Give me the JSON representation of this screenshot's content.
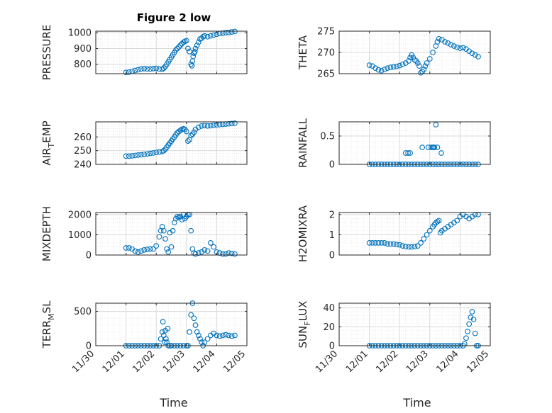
{
  "figure": {
    "title": "Figure 2 low",
    "marker_color": "#0072BD"
  },
  "chart_data": [
    {
      "type": "scatter",
      "ylabel": "PRESSURE",
      "ylim": [
        740,
        1010
      ],
      "yticks": [
        800,
        900,
        1000
      ],
      "xlim": [
        0,
        5
      ],
      "xticks": [
        0,
        1,
        2,
        3,
        4,
        5
      ],
      "xticklabels": [
        "11/30",
        "12/01",
        "12/02",
        "12/03",
        "12/04",
        "12/05"
      ],
      "grid": true,
      "minor_grid": true,
      "x": [
        1.0,
        1.1,
        1.2,
        1.3,
        1.4,
        1.5,
        1.6,
        1.7,
        1.8,
        1.9,
        2.0,
        2.1,
        2.2,
        2.25,
        2.3,
        2.35,
        2.4,
        2.45,
        2.5,
        2.55,
        2.6,
        2.65,
        2.7,
        2.75,
        2.8,
        2.85,
        2.9,
        2.95,
        3.0,
        3.05,
        3.1,
        3.15,
        3.18,
        3.2,
        3.22,
        3.25,
        3.28,
        3.3,
        3.35,
        3.4,
        3.45,
        3.5,
        3.55,
        3.6,
        3.7,
        3.8,
        3.9,
        4.0,
        4.1,
        4.2,
        4.3,
        4.4,
        4.5,
        4.6
      ],
      "y": [
        748,
        750,
        755,
        760,
        765,
        770,
        772,
        770,
        770,
        772,
        774,
        770,
        768,
        775,
        785,
        800,
        815,
        830,
        845,
        860,
        875,
        890,
        900,
        910,
        920,
        930,
        940,
        945,
        950,
        900,
        880,
        800,
        790,
        820,
        850,
        870,
        880,
        900,
        920,
        940,
        960,
        965,
        975,
        980,
        975,
        980,
        985,
        990,
        995,
        998,
        1000,
        1002,
        1005,
        1008
      ]
    },
    {
      "type": "scatter",
      "ylabel": "THETA",
      "ylim": [
        265,
        275
      ],
      "yticks": [
        265,
        270,
        275
      ],
      "xlim": [
        0,
        5
      ],
      "xticks": [
        0,
        1,
        2,
        3,
        4,
        5
      ],
      "xticklabels": [
        "11/30",
        "12/01",
        "12/02",
        "12/03",
        "12/04",
        "12/05"
      ],
      "grid": true,
      "minor_grid": true,
      "x": [
        1.0,
        1.1,
        1.2,
        1.3,
        1.4,
        1.5,
        1.6,
        1.7,
        1.8,
        1.9,
        2.0,
        2.1,
        2.2,
        2.3,
        2.35,
        2.4,
        2.45,
        2.5,
        2.55,
        2.6,
        2.65,
        2.7,
        2.75,
        2.8,
        2.85,
        2.9,
        3.0,
        3.1,
        3.2,
        3.25,
        3.3,
        3.4,
        3.5,
        3.6,
        3.7,
        3.8,
        3.9,
        4.0,
        4.1,
        4.2,
        4.3,
        4.4,
        4.5,
        4.6
      ],
      "y": [
        267.0,
        266.8,
        266.3,
        265.9,
        265.7,
        266.0,
        266.3,
        266.5,
        266.6,
        266.7,
        266.9,
        267.2,
        267.5,
        268.0,
        268.8,
        269.4,
        268.8,
        268.2,
        268.0,
        267.5,
        266.8,
        265.2,
        265.5,
        266.0,
        266.8,
        267.5,
        268.5,
        270.0,
        271.5,
        272.5,
        273.2,
        273.0,
        272.5,
        272.2,
        271.8,
        271.5,
        271.2,
        271.0,
        271.1,
        270.8,
        270.3,
        269.8,
        269.4,
        269.0
      ]
    },
    {
      "type": "scatter",
      "ylabel": "AIR_TEMP",
      "ylim": [
        240,
        271
      ],
      "yticks": [
        240,
        250,
        260
      ],
      "xlim": [
        0,
        5
      ],
      "xticks": [
        0,
        1,
        2,
        3,
        4,
        5
      ],
      "xticklabels": [
        "11/30",
        "12/01",
        "12/02",
        "12/03",
        "12/04",
        "12/05"
      ],
      "grid": true,
      "minor_grid": true,
      "x": [
        1.0,
        1.1,
        1.2,
        1.3,
        1.4,
        1.5,
        1.6,
        1.7,
        1.8,
        1.9,
        2.0,
        2.1,
        2.2,
        2.25,
        2.3,
        2.35,
        2.4,
        2.45,
        2.5,
        2.55,
        2.6,
        2.65,
        2.7,
        2.75,
        2.8,
        2.85,
        2.9,
        2.95,
        3.0,
        3.05,
        3.1,
        3.15,
        3.2,
        3.25,
        3.3,
        3.4,
        3.5,
        3.6,
        3.7,
        3.8,
        3.9,
        4.0,
        4.1,
        4.2,
        4.3,
        4.4,
        4.5,
        4.6
      ],
      "y": [
        246.0,
        246.0,
        246.2,
        246.5,
        246.8,
        247.0,
        247.3,
        247.6,
        248.0,
        248.3,
        248.7,
        249.0,
        249.4,
        250.0,
        251.0,
        252.5,
        254.0,
        255.5,
        257.0,
        258.5,
        260.0,
        261.5,
        263.0,
        264.0,
        264.8,
        265.5,
        266.0,
        265.5,
        264.0,
        257.0,
        258.0,
        261.0,
        262.0,
        263.5,
        265.5,
        267.0,
        268.0,
        268.3,
        268.0,
        268.2,
        268.5,
        268.8,
        269.0,
        269.2,
        269.4,
        269.6,
        269.8,
        270.0
      ]
    },
    {
      "type": "scatter",
      "ylabel": "RAINFALL",
      "ylim": [
        0,
        0.75
      ],
      "yticks": [
        0,
        0.5
      ],
      "xlim": [
        0,
        5
      ],
      "xticks": [
        0,
        1,
        2,
        3,
        4,
        5
      ],
      "xticklabels": [
        "11/30",
        "12/01",
        "12/02",
        "12/03",
        "12/04",
        "12/05"
      ],
      "grid": true,
      "minor_grid": true,
      "x": [
        1.0,
        1.1,
        1.2,
        1.3,
        1.4,
        1.5,
        1.6,
        1.7,
        1.8,
        1.9,
        2.0,
        2.1,
        2.2,
        2.3,
        2.4,
        2.5,
        2.6,
        2.7,
        2.8,
        2.9,
        3.0,
        3.1,
        3.2,
        3.3,
        3.4,
        3.5,
        3.6,
        3.7,
        3.8,
        3.9,
        4.0,
        4.1,
        4.2,
        4.3,
        4.4,
        4.5,
        4.6,
        2.2,
        2.28,
        2.35,
        2.75,
        2.95,
        3.05,
        3.12,
        3.15,
        3.2,
        3.25,
        3.1,
        3.38
      ],
      "y": [
        0,
        0,
        0,
        0,
        0,
        0,
        0,
        0,
        0,
        0,
        0,
        0,
        0,
        0,
        0,
        0,
        0,
        0,
        0,
        0,
        0,
        0,
        0,
        0,
        0,
        0,
        0,
        0,
        0,
        0,
        0,
        0,
        0,
        0,
        0,
        0,
        0,
        0.2,
        0.2,
        0.2,
        0.3,
        0.3,
        0.3,
        0.3,
        0.3,
        0.7,
        0.3,
        0.3,
        0.2
      ]
    },
    {
      "type": "scatter",
      "ylabel": "MIXDEPTH",
      "ylim": [
        0,
        2100
      ],
      "yticks": [
        0,
        1000,
        2000
      ],
      "xlim": [
        0,
        5
      ],
      "xticks": [
        0,
        1,
        2,
        3,
        4,
        5
      ],
      "xticklabels": [
        "11/30",
        "12/01",
        "12/02",
        "12/03",
        "12/04",
        "12/05"
      ],
      "grid": true,
      "minor_grid": true,
      "x": [
        1.0,
        1.1,
        1.2,
        1.3,
        1.4,
        1.5,
        1.6,
        1.7,
        1.8,
        1.9,
        2.0,
        2.1,
        2.15,
        2.2,
        2.25,
        2.3,
        2.35,
        2.4,
        2.45,
        2.5,
        2.55,
        2.6,
        2.65,
        2.7,
        2.75,
        2.8,
        2.85,
        2.9,
        2.95,
        3.0,
        3.05,
        3.1,
        3.15,
        3.2,
        3.25,
        3.3,
        3.4,
        3.5,
        3.6,
        3.7,
        3.8,
        3.9,
        4.0,
        4.1,
        4.2,
        4.3,
        4.4,
        4.5,
        4.6
      ],
      "y": [
        350,
        350,
        300,
        200,
        150,
        200,
        250,
        280,
        300,
        300,
        450,
        900,
        1200,
        1400,
        1200,
        800,
        300,
        150,
        1100,
        400,
        1200,
        1600,
        1800,
        1900,
        1850,
        1900,
        1750,
        2000,
        1800,
        1900,
        2000,
        2000,
        1200,
        300,
        100,
        50,
        100,
        150,
        250,
        200,
        600,
        400,
        150,
        100,
        50,
        50,
        100,
        80,
        50
      ]
    },
    {
      "type": "scatter",
      "ylabel": "H2OMIXRA",
      "ylim": [
        0,
        2.1
      ],
      "yticks": [
        0,
        1,
        2
      ],
      "xlim": [
        0,
        5
      ],
      "xticks": [
        0,
        1,
        2,
        3,
        4,
        5
      ],
      "xticklabels": [
        "11/30",
        "12/01",
        "12/02",
        "12/03",
        "12/04",
        "12/05"
      ],
      "grid": true,
      "minor_grid": true,
      "x": [
        1.0,
        1.1,
        1.2,
        1.3,
        1.4,
        1.5,
        1.6,
        1.7,
        1.8,
        1.9,
        2.0,
        2.1,
        2.2,
        2.3,
        2.4,
        2.5,
        2.6,
        2.7,
        2.8,
        2.9,
        3.0,
        3.1,
        3.15,
        3.2,
        3.25,
        3.3,
        3.35,
        3.4,
        3.5,
        3.6,
        3.7,
        3.8,
        3.9,
        4.0,
        4.1,
        4.2,
        4.3,
        4.4,
        4.5,
        4.6
      ],
      "y": [
        0.6,
        0.6,
        0.6,
        0.6,
        0.6,
        0.6,
        0.55,
        0.55,
        0.55,
        0.52,
        0.5,
        0.45,
        0.42,
        0.4,
        0.4,
        0.42,
        0.45,
        0.6,
        0.8,
        1.0,
        1.2,
        1.4,
        1.5,
        1.6,
        1.65,
        1.7,
        1.1,
        1.2,
        1.3,
        1.4,
        1.5,
        1.6,
        1.7,
        1.9,
        2.0,
        1.9,
        1.8,
        1.9,
        2.0,
        2.0
      ]
    },
    {
      "type": "scatter",
      "ylabel": "TERR_MSL",
      "ylim": [
        0,
        620
      ],
      "yticks": [
        0,
        500
      ],
      "xlim": [
        0,
        5
      ],
      "xticks": [
        0,
        1,
        2,
        3,
        4,
        5
      ],
      "xticklabels": [
        "11/30",
        "12/01",
        "12/02",
        "12/03",
        "12/04",
        "12/05"
      ],
      "grid": true,
      "minor_grid": true,
      "x": [
        1.0,
        1.1,
        1.2,
        1.3,
        1.4,
        1.5,
        1.6,
        1.7,
        1.8,
        1.9,
        2.0,
        2.1,
        2.15,
        2.2,
        2.22,
        2.25,
        2.28,
        2.3,
        2.32,
        2.35,
        2.38,
        2.4,
        2.45,
        2.5,
        2.6,
        2.7,
        2.8,
        2.9,
        3.0,
        3.05,
        3.1,
        3.15,
        3.2,
        3.25,
        3.3,
        3.35,
        3.4,
        3.45,
        3.5,
        3.55,
        3.6,
        3.7,
        3.8,
        3.9,
        4.0,
        4.1,
        4.2,
        4.3,
        4.4,
        4.5,
        4.6
      ],
      "y": [
        0,
        0,
        0,
        0,
        0,
        0,
        0,
        0,
        0,
        0,
        0,
        0,
        100,
        200,
        350,
        150,
        50,
        220,
        100,
        50,
        250,
        0,
        0,
        0,
        0,
        0,
        0,
        0,
        0,
        0,
        200,
        450,
        620,
        400,
        300,
        200,
        150,
        100,
        50,
        0,
        50,
        100,
        150,
        180,
        150,
        140,
        150,
        160,
        150,
        140,
        150
      ]
    },
    {
      "type": "scatter",
      "ylabel": "SUN_FLUX",
      "ylim": [
        0,
        45
      ],
      "yticks": [
        0,
        20,
        40
      ],
      "xlim": [
        0,
        5
      ],
      "xticks": [
        0,
        1,
        2,
        3,
        4,
        5
      ],
      "xticklabels": [
        "11/30",
        "12/01",
        "12/02",
        "12/03",
        "12/04",
        "12/05"
      ],
      "grid": true,
      "minor_grid": true,
      "x": [
        1.0,
        1.1,
        1.2,
        1.3,
        1.4,
        1.5,
        1.6,
        1.7,
        1.8,
        1.9,
        2.0,
        2.1,
        2.2,
        2.3,
        2.4,
        2.5,
        2.6,
        2.7,
        2.8,
        2.9,
        3.0,
        3.1,
        3.2,
        3.3,
        3.4,
        3.5,
        3.6,
        3.7,
        3.8,
        3.9,
        4.0,
        4.1,
        4.15,
        4.2,
        4.25,
        4.3,
        4.35,
        4.4,
        4.45,
        4.5,
        4.55,
        4.6
      ],
      "y": [
        0,
        0,
        0,
        0,
        0,
        0,
        0,
        0,
        0,
        0,
        0,
        0,
        0,
        0,
        0,
        0,
        0,
        0,
        0,
        0,
        0,
        0,
        0,
        0,
        0,
        0,
        0,
        0,
        0,
        0,
        0,
        0,
        2,
        8,
        15,
        23,
        30,
        36,
        28,
        13,
        0,
        0
      ]
    }
  ],
  "xlabels": {
    "left": "Time",
    "right": "Time"
  }
}
